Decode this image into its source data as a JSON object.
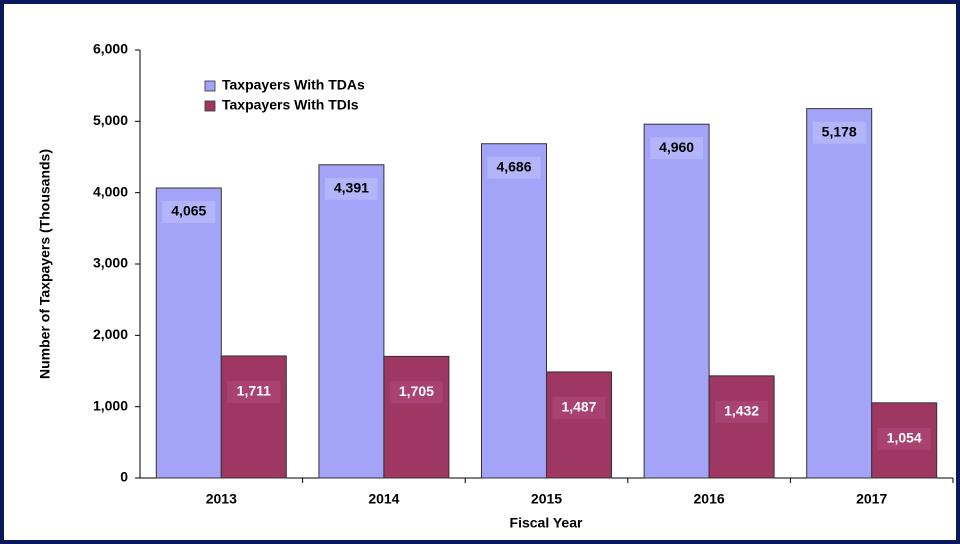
{
  "chart_data": {
    "type": "bar",
    "categories": [
      "2013",
      "2014",
      "2015",
      "2016",
      "2017"
    ],
    "series": [
      {
        "name": "Taxpayers With TDAs",
        "color": "#a3a3f7",
        "values": [
          4065,
          4391,
          4686,
          4960,
          5178
        ],
        "value_labels": [
          "4,065",
          "4,391",
          "4,686",
          "4,960",
          "5,178"
        ]
      },
      {
        "name": "Taxpayers With TDIs",
        "color": "#9e3762",
        "values": [
          1711,
          1705,
          1487,
          1432,
          1054
        ],
        "value_labels": [
          "1,711",
          "1,705",
          "1,487",
          "1,432",
          "1,054"
        ]
      }
    ],
    "ylim": [
      0,
      6000
    ],
    "yticks": [
      0,
      {
        "value": 1000,
        "label": "1,000"
      },
      {
        "value": 2000,
        "label": "2,000"
      },
      {
        "value": 3000,
        "label": "3,000"
      },
      {
        "value": 4000,
        "label": "4,000"
      },
      {
        "value": 5000,
        "label": "5,000"
      },
      {
        "value": 6000,
        "label": "6,000"
      }
    ],
    "xlabel": "Fiscal Year",
    "ylabel": "Number of Taxpayers (Thousands)",
    "legend": "upper left"
  }
}
